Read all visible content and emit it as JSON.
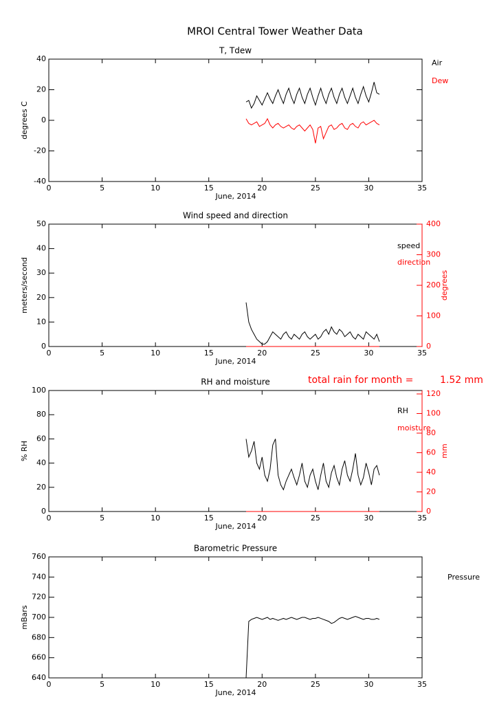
{
  "title": "MROI Central Tower Weather Data",
  "chart_data": [
    {
      "type": "line",
      "title": "T, Tdew",
      "xlabel": "June, 2014",
      "ylabel": "degrees C",
      "xlim": [
        0,
        35
      ],
      "xticks": [
        0,
        5,
        10,
        15,
        20,
        25,
        30,
        35
      ],
      "ylim": [
        -40,
        40
      ],
      "yticks": [
        -40,
        -20,
        0,
        20,
        40
      ],
      "x": [
        18.5,
        18.75,
        19,
        19.25,
        19.5,
        19.75,
        20,
        20.25,
        20.5,
        20.75,
        21,
        21.25,
        21.5,
        21.75,
        22,
        22.25,
        22.5,
        22.75,
        23,
        23.25,
        23.5,
        23.75,
        24,
        24.25,
        24.5,
        24.75,
        25,
        25.25,
        25.5,
        25.75,
        26,
        26.25,
        26.5,
        26.75,
        27,
        27.25,
        27.5,
        27.75,
        28,
        28.25,
        28.5,
        28.75,
        29,
        29.25,
        29.5,
        29.75,
        30,
        30.25,
        30.5,
        30.75,
        31
      ],
      "series": [
        {
          "name": "Air",
          "color": "#000000",
          "values": [
            12,
            13,
            8,
            11,
            16,
            13,
            10,
            14,
            18,
            14,
            11,
            16,
            20,
            15,
            11,
            17,
            21,
            15,
            11,
            17,
            21,
            15,
            11,
            17,
            21,
            15,
            10,
            16,
            21,
            15,
            11,
            17,
            21,
            15,
            11,
            17,
            21,
            15,
            11,
            16,
            21,
            15,
            11,
            17,
            22,
            16,
            12,
            18,
            25,
            18,
            17
          ]
        },
        {
          "name": "Dew",
          "color": "#ff0000",
          "values": [
            1,
            -2,
            -3,
            -2,
            -1,
            -4,
            -3,
            -2,
            1,
            -3,
            -5,
            -3,
            -2,
            -4,
            -5,
            -4,
            -3,
            -5,
            -6,
            -4,
            -3,
            -5,
            -7,
            -5,
            -3,
            -6,
            -15,
            -5,
            -4,
            -12,
            -8,
            -4,
            -3,
            -6,
            -5,
            -3,
            -2,
            -5,
            -6,
            -3,
            -2,
            -4,
            -5,
            -2,
            -1,
            -3,
            -2,
            -1,
            0,
            -2,
            -3
          ]
        }
      ]
    },
    {
      "type": "line",
      "title": "Wind speed and direction",
      "xlabel": "June, 2014",
      "ylabel": "meters/second",
      "y2label": "degrees",
      "xlim": [
        0,
        35
      ],
      "xticks": [
        0,
        5,
        10,
        15,
        20,
        25,
        30,
        35
      ],
      "ylim": [
        0,
        50
      ],
      "yticks": [
        0,
        10,
        20,
        30,
        40,
        50
      ],
      "y2lim": [
        0,
        400
      ],
      "y2ticks": [
        0,
        100,
        200,
        300,
        400
      ],
      "y2color": "#ff0000",
      "x": [
        18.5,
        18.75,
        19,
        19.25,
        19.5,
        19.75,
        20,
        20.25,
        20.5,
        20.75,
        21,
        21.25,
        21.5,
        21.75,
        22,
        22.25,
        22.5,
        22.75,
        23,
        23.25,
        23.5,
        23.75,
        24,
        24.25,
        24.5,
        24.75,
        25,
        25.25,
        25.5,
        25.75,
        26,
        26.25,
        26.5,
        26.75,
        27,
        27.25,
        27.5,
        27.75,
        28,
        28.25,
        28.5,
        28.75,
        29,
        29.25,
        29.5,
        29.75,
        30,
        30.25,
        30.5,
        30.75,
        31
      ],
      "series": [
        {
          "name": "speed",
          "color": "#000000",
          "values": [
            18,
            10,
            7,
            5,
            3,
            2,
            1,
            1,
            2,
            4,
            6,
            5,
            4,
            3,
            5,
            6,
            4,
            3,
            5,
            4,
            3,
            5,
            6,
            4,
            3,
            4,
            5,
            3,
            4,
            6,
            7,
            5,
            8,
            6,
            5,
            7,
            6,
            4,
            5,
            6,
            4,
            3,
            5,
            4,
            3,
            6,
            5,
            4,
            3,
            5,
            2
          ]
        },
        {
          "name": "direction",
          "color": "#ff0000",
          "axis": "y2",
          "values": [
            0,
            0,
            0,
            0,
            0,
            0,
            0,
            0,
            0,
            0,
            0,
            0,
            0,
            0,
            0,
            0,
            0,
            0,
            0,
            0,
            0,
            0,
            0,
            0,
            0,
            0,
            0,
            0,
            0,
            0,
            0,
            0,
            0,
            0,
            0,
            0,
            0,
            0,
            0,
            0,
            0,
            0,
            0,
            0,
            0,
            0,
            0,
            0,
            0,
            0,
            0
          ]
        }
      ]
    },
    {
      "type": "line",
      "title": "RH and moisture",
      "xlabel": "June, 2014",
      "ylabel": "% RH",
      "y2label": "mm",
      "annotations": [
        "total rain for month =",
        "1.52 mm"
      ],
      "annotation_color": "#ff0000",
      "xlim": [
        0,
        35
      ],
      "xticks": [
        0,
        5,
        10,
        15,
        20,
        25,
        30,
        35
      ],
      "ylim": [
        0,
        100
      ],
      "yticks": [
        0,
        20,
        40,
        60,
        80,
        100
      ],
      "y2lim": [
        0,
        123.5
      ],
      "y2ticks": [
        0,
        20,
        40,
        60,
        80,
        100,
        120
      ],
      "y2color": "#ff0000",
      "x": [
        18.5,
        18.75,
        19,
        19.25,
        19.5,
        19.75,
        20,
        20.25,
        20.5,
        20.75,
        21,
        21.25,
        21.5,
        21.75,
        22,
        22.25,
        22.5,
        22.75,
        23,
        23.25,
        23.5,
        23.75,
        24,
        24.25,
        24.5,
        24.75,
        25,
        25.25,
        25.5,
        25.75,
        26,
        26.25,
        26.5,
        26.75,
        27,
        27.25,
        27.5,
        27.75,
        28,
        28.25,
        28.5,
        28.75,
        29,
        29.25,
        29.5,
        29.75,
        30,
        30.25,
        30.5,
        30.75,
        31
      ],
      "series": [
        {
          "name": "RH",
          "color": "#000000",
          "values": [
            60,
            45,
            50,
            58,
            40,
            35,
            45,
            30,
            25,
            35,
            55,
            60,
            30,
            22,
            18,
            25,
            30,
            35,
            28,
            22,
            30,
            40,
            25,
            20,
            30,
            35,
            25,
            18,
            30,
            40,
            25,
            20,
            32,
            38,
            28,
            22,
            35,
            42,
            30,
            25,
            35,
            48,
            30,
            22,
            28,
            40,
            32,
            22,
            35,
            38,
            30
          ]
        },
        {
          "name": "moisture",
          "color": "#ff0000",
          "axis": "y2",
          "values": [
            0,
            0,
            0,
            0,
            0,
            0,
            0,
            0,
            0,
            0,
            0,
            0,
            0,
            0,
            0,
            0,
            0,
            0,
            0,
            0,
            0,
            0,
            0,
            0,
            0,
            0,
            0,
            0,
            0,
            0,
            0,
            0,
            0,
            0,
            0,
            0,
            0,
            0,
            0,
            0,
            0,
            0,
            0,
            0,
            0,
            0,
            0,
            0,
            0,
            0,
            0
          ]
        }
      ]
    },
    {
      "type": "line",
      "title": "Barometric Pressure",
      "xlabel": "June, 2014",
      "ylabel": "mBars",
      "xlim": [
        0,
        35
      ],
      "xticks": [
        0,
        5,
        10,
        15,
        20,
        25,
        30,
        35
      ],
      "ylim": [
        640,
        760
      ],
      "yticks": [
        640,
        660,
        680,
        700,
        720,
        740,
        760
      ],
      "x": [
        18.5,
        18.75,
        19,
        19.25,
        19.5,
        19.75,
        20,
        20.25,
        20.5,
        20.75,
        21,
        21.25,
        21.5,
        21.75,
        22,
        22.25,
        22.5,
        22.75,
        23,
        23.25,
        23.5,
        23.75,
        24,
        24.25,
        24.5,
        24.75,
        25,
        25.25,
        25.5,
        25.75,
        26,
        26.25,
        26.5,
        26.75,
        27,
        27.25,
        27.5,
        27.75,
        28,
        28.25,
        28.5,
        28.75,
        29,
        29.25,
        29.5,
        29.75,
        30,
        30.25,
        30.5,
        30.75,
        31
      ],
      "series": [
        {
          "name": "Pressure",
          "color": "#000000",
          "values": [
            640,
            696,
            698,
            699,
            700,
            699,
            698,
            699,
            700,
            698,
            699,
            698,
            697,
            698,
            699,
            698,
            699,
            700,
            699,
            698,
            699,
            700,
            700,
            699,
            698,
            699,
            699,
            700,
            699,
            698,
            697,
            696,
            694,
            695,
            697,
            699,
            700,
            699,
            698,
            699,
            700,
            701,
            700,
            699,
            698,
            699,
            699,
            698,
            698,
            699,
            698
          ]
        }
      ]
    }
  ]
}
